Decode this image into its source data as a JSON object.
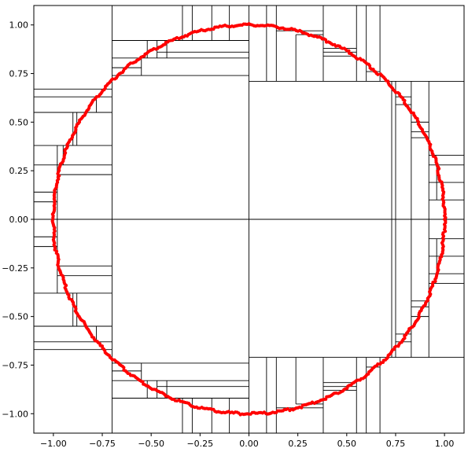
{
  "chart_data": {
    "type": "scatter",
    "title": "",
    "xlabel": "",
    "ylabel": "",
    "xlim": [
      -1.1,
      1.1
    ],
    "ylim": [
      -1.1,
      1.1
    ],
    "grid": false,
    "x_ticks": [
      "-1.00",
      "-0.75",
      "-0.50",
      "-0.25",
      "0.00",
      "0.25",
      "0.50",
      "0.75",
      "1.00"
    ],
    "y_ticks": [
      "1.00",
      "0.75",
      "0.50",
      "0.25",
      "0.00",
      "−0.25",
      "−0.50",
      "−0.75",
      "−1.00"
    ],
    "x_tick_values": [
      -1.0,
      -0.75,
      -0.5,
      -0.25,
      0.0,
      0.25,
      0.5,
      0.75,
      1.0
    ],
    "y_tick_values": [
      1.0,
      0.75,
      0.5,
      0.25,
      0.0,
      -0.25,
      -0.5,
      -0.75,
      -1.0
    ],
    "x_tick_labels": [
      "−1.00",
      "−0.75",
      "−0.50",
      "−0.25",
      "0.00",
      "0.25",
      "0.50",
      "0.75",
      "1.00"
    ],
    "series": [
      {
        "shape": "circle",
        "center": [
          0,
          0
        ],
        "radius": 1.0,
        "color": "#ff0000",
        "marker": "point"
      }
    ],
    "partition_lines": [
      {
        "x1": -1.1,
        "y1": 0,
        "x2": 1.1,
        "y2": 0
      },
      {
        "x1": 0,
        "y1": -1.1,
        "x2": 0,
        "y2": 1.1
      },
      {
        "x1": -0.7,
        "y1": -1.1,
        "x2": -0.7,
        "y2": 1.1
      },
      {
        "x1": 0.73,
        "y1": -0.71,
        "x2": 0.73,
        "y2": 0.71
      },
      {
        "x1": 0,
        "y1": 0.71,
        "x2": 1.1,
        "y2": 0.71
      },
      {
        "x1": 0,
        "y1": -0.71,
        "x2": 1.1,
        "y2": -0.71
      },
      {
        "x1": -0.7,
        "y1": 0.74,
        "x2": 0,
        "y2": 0.74
      },
      {
        "x1": -0.7,
        "y1": -0.74,
        "x2": 0,
        "y2": -0.74
      },
      {
        "x1": -1.1,
        "y1": 0.67,
        "x2": -0.7,
        "y2": 0.67
      },
      {
        "x1": -1.1,
        "y1": -0.67,
        "x2": -0.7,
        "y2": -0.67
      },
      {
        "x1": -1.1,
        "y1": 0.63,
        "x2": -0.7,
        "y2": 0.63
      },
      {
        "x1": -1.1,
        "y1": 0.55,
        "x2": -0.7,
        "y2": 0.55
      },
      {
        "x1": -0.78,
        "y1": 0.55,
        "x2": -0.78,
        "y2": 0.63
      },
      {
        "x1": -1.1,
        "y1": 0.38,
        "x2": -0.7,
        "y2": 0.38
      },
      {
        "x1": -0.9,
        "y1": 0.38,
        "x2": -0.9,
        "y2": 0.55
      },
      {
        "x1": -0.88,
        "y1": 0.38,
        "x2": -0.88,
        "y2": 0.55
      },
      {
        "x1": -1.1,
        "y1": 0.28,
        "x2": -0.7,
        "y2": 0.28
      },
      {
        "x1": -0.98,
        "y1": 0.0,
        "x2": -0.98,
        "y2": 0.38
      },
      {
        "x1": -0.95,
        "y1": 0.28,
        "x2": -0.95,
        "y2": 0.38
      },
      {
        "x1": -0.98,
        "y1": 0.23,
        "x2": -0.7,
        "y2": 0.23
      },
      {
        "x1": -1.1,
        "y1": 0.14,
        "x2": -0.98,
        "y2": 0.14
      },
      {
        "x1": -1.1,
        "y1": 0.09,
        "x2": -0.98,
        "y2": 0.09
      },
      {
        "x1": -1.1,
        "y1": -0.63,
        "x2": -0.7,
        "y2": -0.63
      },
      {
        "x1": -1.1,
        "y1": -0.55,
        "x2": -0.7,
        "y2": -0.55
      },
      {
        "x1": -0.78,
        "y1": -0.55,
        "x2": -0.78,
        "y2": -0.63
      },
      {
        "x1": -1.1,
        "y1": -0.38,
        "x2": -0.7,
        "y2": -0.38
      },
      {
        "x1": -0.9,
        "y1": -0.38,
        "x2": -0.9,
        "y2": -0.55
      },
      {
        "x1": -0.88,
        "y1": -0.38,
        "x2": -0.88,
        "y2": -0.55
      },
      {
        "x1": -0.98,
        "y1": -0.29,
        "x2": -0.7,
        "y2": -0.29
      },
      {
        "x1": -0.98,
        "y1": -0.24,
        "x2": -0.7,
        "y2": -0.24
      },
      {
        "x1": -0.98,
        "y1": 0.0,
        "x2": -0.98,
        "y2": -0.38
      },
      {
        "x1": -1.1,
        "y1": -0.14,
        "x2": -0.98,
        "y2": -0.14
      },
      {
        "x1": -1.1,
        "y1": -0.09,
        "x2": -0.98,
        "y2": -0.09
      },
      {
        "x1": -0.7,
        "y1": 0.92,
        "x2": 0,
        "y2": 0.92
      },
      {
        "x1": -0.7,
        "y1": 0.83,
        "x2": 0,
        "y2": 0.83
      },
      {
        "x1": -0.7,
        "y1": 0.78,
        "x2": -0.55,
        "y2": 0.78
      },
      {
        "x1": -0.55,
        "y1": 0.74,
        "x2": -0.55,
        "y2": 0.83
      },
      {
        "x1": -0.52,
        "y1": 0.83,
        "x2": -0.52,
        "y2": 0.92
      },
      {
        "x1": -0.47,
        "y1": 0.83,
        "x2": -0.47,
        "y2": 0.92
      },
      {
        "x1": -0.42,
        "y1": 0.83,
        "x2": -0.42,
        "y2": 0.92
      },
      {
        "x1": -0.47,
        "y1": 0.86,
        "x2": 0,
        "y2": 0.86
      },
      {
        "x1": -0.34,
        "y1": 0.92,
        "x2": -0.34,
        "y2": 1.1
      },
      {
        "x1": -0.29,
        "y1": 0.92,
        "x2": -0.29,
        "y2": 1.1
      },
      {
        "x1": -0.19,
        "y1": 0.92,
        "x2": -0.19,
        "y2": 1.1
      },
      {
        "x1": -0.1,
        "y1": 0.92,
        "x2": -0.1,
        "y2": 1.1
      },
      {
        "x1": -0.7,
        "y1": -0.92,
        "x2": 0,
        "y2": -0.92
      },
      {
        "x1": -0.7,
        "y1": -0.83,
        "x2": 0,
        "y2": -0.83
      },
      {
        "x1": -0.7,
        "y1": -0.78,
        "x2": -0.55,
        "y2": -0.78
      },
      {
        "x1": -0.55,
        "y1": -0.74,
        "x2": -0.55,
        "y2": -0.83
      },
      {
        "x1": -0.52,
        "y1": -0.83,
        "x2": -0.52,
        "y2": -0.92
      },
      {
        "x1": -0.47,
        "y1": -0.83,
        "x2": -0.47,
        "y2": -0.92
      },
      {
        "x1": -0.42,
        "y1": -0.83,
        "x2": -0.42,
        "y2": -0.92
      },
      {
        "x1": -0.47,
        "y1": -0.86,
        "x2": 0,
        "y2": -0.86
      },
      {
        "x1": -0.34,
        "y1": -0.92,
        "x2": -0.34,
        "y2": -1.1
      },
      {
        "x1": -0.29,
        "y1": -0.92,
        "x2": -0.29,
        "y2": -1.1
      },
      {
        "x1": -0.19,
        "y1": -0.92,
        "x2": -0.19,
        "y2": -1.1
      },
      {
        "x1": -0.1,
        "y1": -0.92,
        "x2": -0.1,
        "y2": -1.1
      },
      {
        "x1": 0.09,
        "y1": 0.71,
        "x2": 0.09,
        "y2": 1.1
      },
      {
        "x1": 0.14,
        "y1": 0.71,
        "x2": 0.14,
        "y2": 1.1
      },
      {
        "x1": 0.38,
        "y1": 0.71,
        "x2": 0.38,
        "y2": 1.1
      },
      {
        "x1": 0.14,
        "y1": 0.97,
        "x2": 0.38,
        "y2": 0.97
      },
      {
        "x1": 0.24,
        "y1": 0.95,
        "x2": 0.38,
        "y2": 0.95
      },
      {
        "x1": 0.24,
        "y1": 0.71,
        "x2": 0.24,
        "y2": 0.95
      },
      {
        "x1": 0.38,
        "y1": 0.86,
        "x2": 0.55,
        "y2": 0.86
      },
      {
        "x1": 0.38,
        "y1": 0.88,
        "x2": 0.55,
        "y2": 0.88
      },
      {
        "x1": 0.38,
        "y1": 0.84,
        "x2": 0.55,
        "y2": 0.84
      },
      {
        "x1": 0.55,
        "y1": 0.71,
        "x2": 0.55,
        "y2": 1.1
      },
      {
        "x1": 0.6,
        "y1": 0.71,
        "x2": 0.6,
        "y2": 1.1
      },
      {
        "x1": 0.67,
        "y1": 0.71,
        "x2": 0.67,
        "y2": 1.1
      },
      {
        "x1": 0.6,
        "y1": 0.76,
        "x2": 0.67,
        "y2": 0.76
      },
      {
        "x1": 0.09,
        "y1": -0.71,
        "x2": 0.09,
        "y2": -1.1
      },
      {
        "x1": 0.14,
        "y1": -0.71,
        "x2": 0.14,
        "y2": -1.1
      },
      {
        "x1": 0.38,
        "y1": -0.71,
        "x2": 0.38,
        "y2": -1.1
      },
      {
        "x1": 0.14,
        "y1": -0.97,
        "x2": 0.38,
        "y2": -0.97
      },
      {
        "x1": 0.24,
        "y1": -0.95,
        "x2": 0.38,
        "y2": -0.95
      },
      {
        "x1": 0.24,
        "y1": -0.71,
        "x2": 0.24,
        "y2": -0.95
      },
      {
        "x1": 0.38,
        "y1": -0.86,
        "x2": 0.55,
        "y2": -0.86
      },
      {
        "x1": 0.38,
        "y1": -0.88,
        "x2": 0.55,
        "y2": -0.88
      },
      {
        "x1": 0.38,
        "y1": -0.84,
        "x2": 0.55,
        "y2": -0.84
      },
      {
        "x1": 0.55,
        "y1": -0.71,
        "x2": 0.55,
        "y2": -1.1
      },
      {
        "x1": 0.6,
        "y1": -0.71,
        "x2": 0.6,
        "y2": -1.1
      },
      {
        "x1": 0.67,
        "y1": -0.71,
        "x2": 0.67,
        "y2": -1.1
      },
      {
        "x1": 0.6,
        "y1": -0.76,
        "x2": 0.67,
        "y2": -0.76
      },
      {
        "x1": 0.75,
        "y1": -0.71,
        "x2": 0.75,
        "y2": 0.71
      },
      {
        "x1": 0.83,
        "y1": -0.71,
        "x2": 0.83,
        "y2": 0.71
      },
      {
        "x1": 0.92,
        "y1": -0.71,
        "x2": 0.92,
        "y2": 0.71
      },
      {
        "x1": 0.75,
        "y1": 0.59,
        "x2": 0.83,
        "y2": 0.59
      },
      {
        "x1": 0.75,
        "y1": 0.63,
        "x2": 0.83,
        "y2": 0.63
      },
      {
        "x1": 0.83,
        "y1": 0.5,
        "x2": 0.92,
        "y2": 0.5
      },
      {
        "x1": 0.83,
        "y1": 0.45,
        "x2": 0.92,
        "y2": 0.45
      },
      {
        "x1": 0.83,
        "y1": 0.42,
        "x2": 0.92,
        "y2": 0.42
      },
      {
        "x1": 0.92,
        "y1": 0.33,
        "x2": 1.1,
        "y2": 0.33
      },
      {
        "x1": 0.92,
        "y1": 0.28,
        "x2": 1.1,
        "y2": 0.28
      },
      {
        "x1": 0.92,
        "y1": 0.19,
        "x2": 1.1,
        "y2": 0.19
      },
      {
        "x1": 0.92,
        "y1": 0.1,
        "x2": 1.1,
        "y2": 0.1
      },
      {
        "x1": 0.96,
        "y1": 0.1,
        "x2": 0.96,
        "y2": 0.28
      },
      {
        "x1": 0.75,
        "y1": -0.59,
        "x2": 0.83,
        "y2": -0.59
      },
      {
        "x1": 0.75,
        "y1": -0.63,
        "x2": 0.83,
        "y2": -0.63
      },
      {
        "x1": 0.83,
        "y1": -0.5,
        "x2": 0.92,
        "y2": -0.5
      },
      {
        "x1": 0.83,
        "y1": -0.45,
        "x2": 0.92,
        "y2": -0.45
      },
      {
        "x1": 0.83,
        "y1": -0.42,
        "x2": 0.92,
        "y2": -0.42
      },
      {
        "x1": 0.92,
        "y1": -0.33,
        "x2": 1.1,
        "y2": -0.33
      },
      {
        "x1": 0.92,
        "y1": -0.28,
        "x2": 1.1,
        "y2": -0.28
      },
      {
        "x1": 0.92,
        "y1": -0.19,
        "x2": 1.1,
        "y2": -0.19
      },
      {
        "x1": 0.92,
        "y1": -0.1,
        "x2": 1.1,
        "y2": -0.1
      },
      {
        "x1": 0.96,
        "y1": -0.1,
        "x2": 0.96,
        "y2": -0.28
      }
    ]
  }
}
